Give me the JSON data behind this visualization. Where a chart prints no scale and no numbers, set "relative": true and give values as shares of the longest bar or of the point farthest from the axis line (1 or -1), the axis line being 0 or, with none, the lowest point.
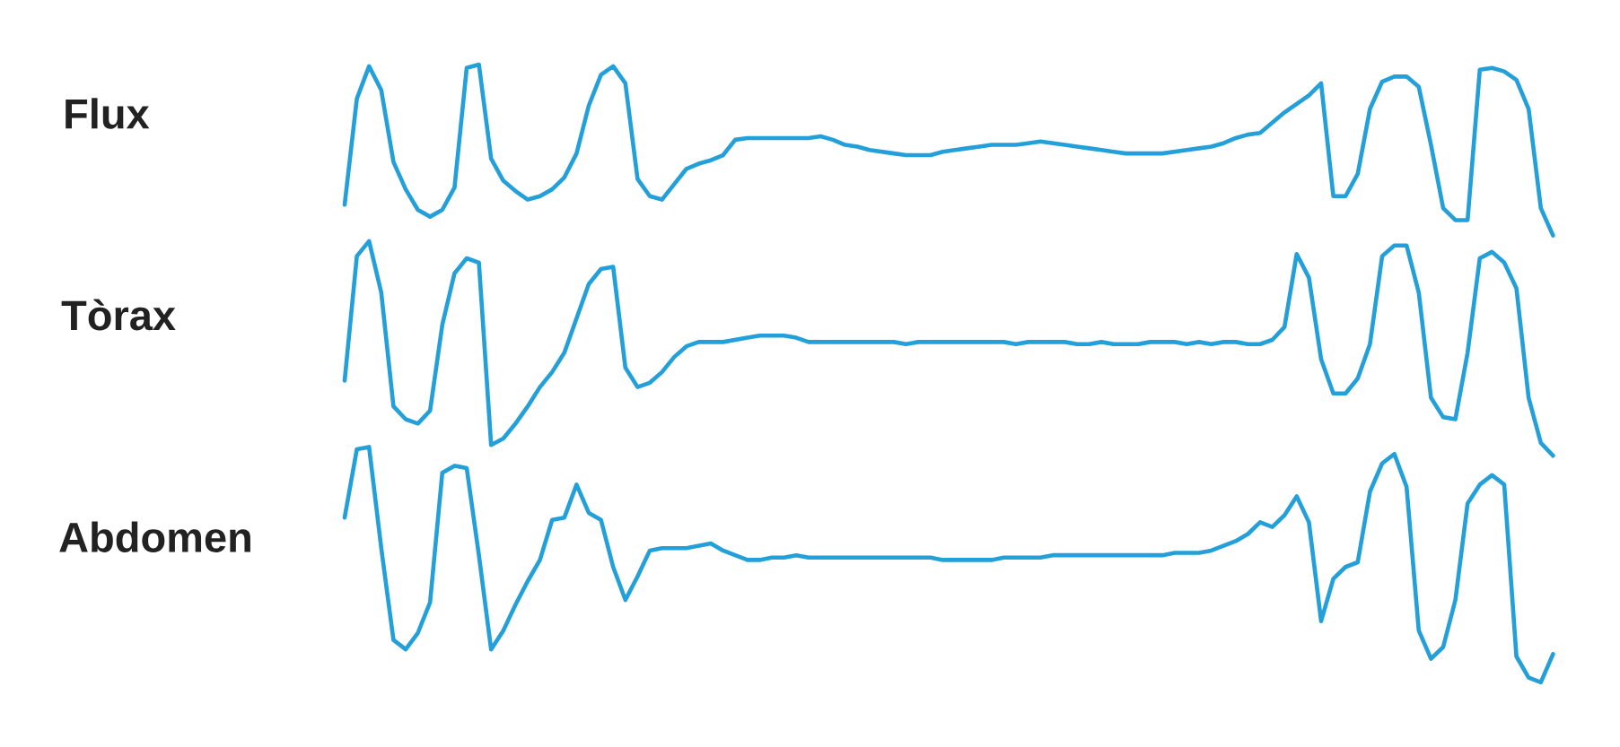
{
  "chart_data": [
    {
      "type": "line",
      "relative": true,
      "ylabel": "Flux",
      "color": "#239fd9",
      "categories": [
        null,
        null,
        null,
        null,
        null,
        null,
        null,
        null,
        null,
        null,
        null,
        null,
        null,
        null,
        null,
        null,
        null,
        null,
        null,
        null,
        null,
        null,
        null,
        null,
        null,
        null,
        null,
        null,
        null,
        null,
        null,
        null,
        null,
        null,
        null,
        null,
        null,
        null,
        null,
        null,
        null,
        null,
        null,
        null,
        null,
        null,
        null,
        null,
        null,
        null,
        null,
        null,
        null,
        null,
        null,
        null,
        null,
        null,
        null,
        null,
        null,
        null,
        null,
        null,
        null,
        null,
        null,
        null,
        null,
        null,
        null,
        null,
        null,
        null,
        null,
        null,
        null,
        null,
        null,
        null,
        null,
        null,
        null,
        null,
        null,
        null,
        null,
        null,
        null,
        null,
        null,
        null,
        null,
        null,
        null,
        null,
        null,
        null,
        null,
        null
      ],
      "values": [
        0.18,
        0.8,
        0.99,
        0.85,
        0.43,
        0.27,
        0.15,
        0.11,
        0.15,
        0.28,
        0.98,
        1.0,
        0.45,
        0.32,
        0.26,
        0.21,
        0.23,
        0.27,
        0.34,
        0.48,
        0.76,
        0.94,
        0.99,
        0.89,
        0.33,
        0.23,
        0.21,
        0.3,
        0.39,
        0.42,
        0.44,
        0.47,
        0.56,
        0.57,
        0.57,
        0.57,
        0.57,
        0.57,
        0.57,
        0.58,
        0.56,
        0.53,
        0.52,
        0.5,
        0.49,
        0.48,
        0.47,
        0.47,
        0.47,
        0.49,
        0.5,
        0.51,
        0.52,
        0.53,
        0.53,
        0.53,
        0.54,
        0.55,
        0.54,
        0.53,
        0.52,
        0.51,
        0.5,
        0.49,
        0.48,
        0.48,
        0.48,
        0.48,
        0.49,
        0.5,
        0.51,
        0.52,
        0.54,
        0.57,
        0.59,
        0.6,
        0.66,
        0.72,
        0.77,
        0.82,
        0.89,
        0.23,
        0.23,
        0.36,
        0.74,
        0.9,
        0.93,
        0.93,
        0.87,
        0.53,
        0.16,
        0.09,
        0.09,
        0.97,
        0.98,
        0.96,
        0.91,
        0.74,
        0.16,
        0.0
      ]
    },
    {
      "type": "line",
      "relative": true,
      "ylabel": "Tòrax",
      "color": "#239fd9",
      "categories": [
        null,
        null,
        null,
        null,
        null,
        null,
        null,
        null,
        null,
        null,
        null,
        null,
        null,
        null,
        null,
        null,
        null,
        null,
        null,
        null,
        null,
        null,
        null,
        null,
        null,
        null,
        null,
        null,
        null,
        null,
        null,
        null,
        null,
        null,
        null,
        null,
        null,
        null,
        null,
        null,
        null,
        null,
        null,
        null,
        null,
        null,
        null,
        null,
        null,
        null,
        null,
        null,
        null,
        null,
        null,
        null,
        null,
        null,
        null,
        null,
        null,
        null,
        null,
        null,
        null,
        null,
        null,
        null,
        null,
        null,
        null,
        null,
        null,
        null,
        null,
        null,
        null,
        null,
        null,
        null,
        null,
        null,
        null,
        null,
        null,
        null,
        null,
        null,
        null,
        null,
        null,
        null,
        null,
        null,
        null,
        null,
        null,
        null,
        null,
        null
      ],
      "values": [
        0.35,
        0.93,
        1.0,
        0.76,
        0.23,
        0.17,
        0.15,
        0.21,
        0.61,
        0.85,
        0.92,
        0.9,
        0.05,
        0.08,
        0.15,
        0.23,
        0.32,
        0.39,
        0.48,
        0.64,
        0.8,
        0.87,
        0.88,
        0.41,
        0.32,
        0.34,
        0.39,
        0.46,
        0.51,
        0.53,
        0.53,
        0.53,
        0.54,
        0.55,
        0.56,
        0.56,
        0.56,
        0.55,
        0.53,
        0.53,
        0.53,
        0.53,
        0.53,
        0.53,
        0.53,
        0.53,
        0.52,
        0.53,
        0.53,
        0.53,
        0.53,
        0.53,
        0.53,
        0.53,
        0.53,
        0.52,
        0.53,
        0.53,
        0.53,
        0.53,
        0.52,
        0.52,
        0.53,
        0.52,
        0.52,
        0.52,
        0.53,
        0.53,
        0.53,
        0.52,
        0.53,
        0.52,
        0.53,
        0.53,
        0.52,
        0.52,
        0.54,
        0.6,
        0.94,
        0.83,
        0.45,
        0.29,
        0.29,
        0.36,
        0.52,
        0.93,
        0.98,
        0.98,
        0.76,
        0.27,
        0.18,
        0.17,
        0.48,
        0.92,
        0.95,
        0.9,
        0.78,
        0.27,
        0.06,
        0.0
      ]
    },
    {
      "type": "line",
      "relative": true,
      "ylabel": "Abdomen",
      "color": "#239fd9",
      "categories": [
        null,
        null,
        null,
        null,
        null,
        null,
        null,
        null,
        null,
        null,
        null,
        null,
        null,
        null,
        null,
        null,
        null,
        null,
        null,
        null,
        null,
        null,
        null,
        null,
        null,
        null,
        null,
        null,
        null,
        null,
        null,
        null,
        null,
        null,
        null,
        null,
        null,
        null,
        null,
        null,
        null,
        null,
        null,
        null,
        null,
        null,
        null,
        null,
        null,
        null,
        null,
        null,
        null,
        null,
        null,
        null,
        null,
        null,
        null,
        null,
        null,
        null,
        null,
        null,
        null,
        null,
        null,
        null,
        null,
        null,
        null,
        null,
        null,
        null,
        null,
        null,
        null,
        null,
        null,
        null,
        null,
        null,
        null,
        null,
        null,
        null,
        null,
        null,
        null,
        null,
        null,
        null,
        null,
        null,
        null,
        null,
        null,
        null,
        null,
        null
      ],
      "values": [
        0.7,
        0.99,
        1.0,
        0.57,
        0.18,
        0.14,
        0.21,
        0.34,
        0.89,
        0.92,
        0.91,
        0.54,
        0.14,
        0.22,
        0.33,
        0.43,
        0.52,
        0.69,
        0.7,
        0.84,
        0.72,
        0.69,
        0.49,
        0.35,
        0.45,
        0.56,
        0.57,
        0.57,
        0.57,
        0.58,
        0.59,
        0.56,
        0.54,
        0.52,
        0.52,
        0.53,
        0.53,
        0.54,
        0.53,
        0.53,
        0.53,
        0.53,
        0.53,
        0.53,
        0.53,
        0.53,
        0.53,
        0.53,
        0.53,
        0.52,
        0.52,
        0.52,
        0.52,
        0.52,
        0.53,
        0.53,
        0.53,
        0.53,
        0.54,
        0.54,
        0.54,
        0.54,
        0.54,
        0.54,
        0.54,
        0.54,
        0.54,
        0.54,
        0.55,
        0.55,
        0.55,
        0.56,
        0.58,
        0.6,
        0.63,
        0.68,
        0.66,
        0.71,
        0.79,
        0.68,
        0.26,
        0.44,
        0.49,
        0.51,
        0.81,
        0.93,
        0.97,
        0.83,
        0.22,
        0.1,
        0.15,
        0.35,
        0.76,
        0.84,
        0.88,
        0.84,
        0.11,
        0.02,
        0.0,
        0.12
      ]
    }
  ]
}
